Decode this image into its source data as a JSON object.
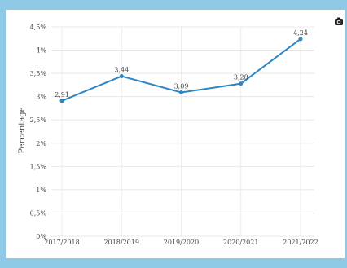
{
  "toolbar": {
    "camera_icon": "camera-icon"
  },
  "chart_data": {
    "type": "line",
    "title": "",
    "xlabel": "",
    "ylabel": "Percentage",
    "categories": [
      "2017/2018",
      "2018/2019",
      "2019/2020",
      "2020/2021",
      "2021/2022"
    ],
    "series": [
      {
        "values": [
          2.91,
          3.44,
          3.09,
          3.28,
          4.24
        ],
        "data_labels": [
          "2,91",
          "3,44",
          "3,09",
          "3,28",
          "4,24"
        ],
        "color": "#2e86c1"
      }
    ],
    "ylim": [
      0,
      4.5
    ],
    "yticks": [
      0,
      0.5,
      1,
      1.5,
      2,
      2.5,
      3,
      3.5,
      4,
      4.5
    ],
    "ytick_labels": [
      "0%",
      "0,5%",
      "1%",
      "1,5%",
      "2%",
      "2,5%",
      "3%",
      "3,5%",
      "4%",
      "4,5%"
    ],
    "grid": true,
    "legend": "none"
  }
}
